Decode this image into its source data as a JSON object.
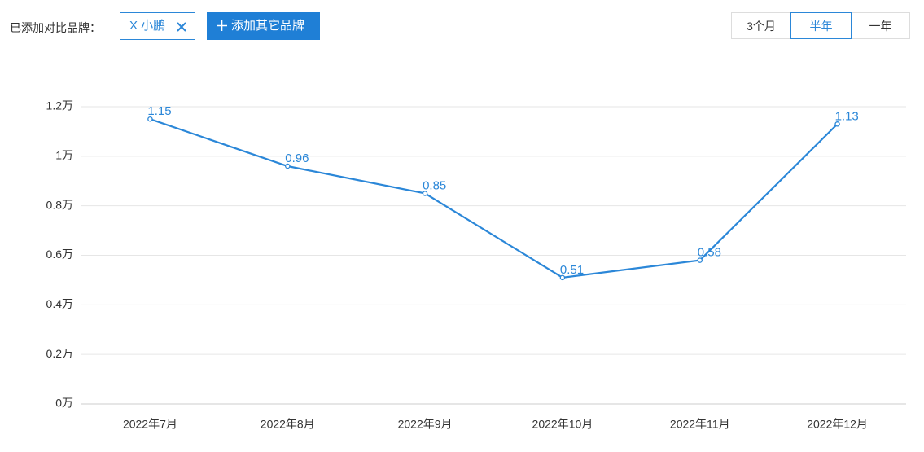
{
  "controls": {
    "compare_label": "已添加对比品牌：",
    "brand_tag": "X 小鹏",
    "add_button": "添加其它品牌",
    "ranges": [
      "3个月",
      "半年",
      "一年"
    ],
    "selected_range": "半年"
  },
  "chart_data": {
    "type": "line",
    "categories": [
      "2022年7月",
      "2022年8月",
      "2022年9月",
      "2022年10月",
      "2022年11月",
      "2022年12月"
    ],
    "series": [
      {
        "name": "小鹏",
        "color": "#2b87d8",
        "values": [
          1.15,
          0.96,
          0.85,
          0.51,
          0.58,
          1.13
        ]
      }
    ],
    "ylim": [
      0,
      1.2
    ],
    "yticks": [
      {
        "value": 0,
        "label": "0万"
      },
      {
        "value": 0.2,
        "label": "0.2万"
      },
      {
        "value": 0.4,
        "label": "0.4万"
      },
      {
        "value": 0.6,
        "label": "0.6万"
      },
      {
        "value": 0.8,
        "label": "0.8万"
      },
      {
        "value": 1,
        "label": "1万"
      },
      {
        "value": 1.2,
        "label": "1.2万"
      }
    ],
    "grid": true
  }
}
